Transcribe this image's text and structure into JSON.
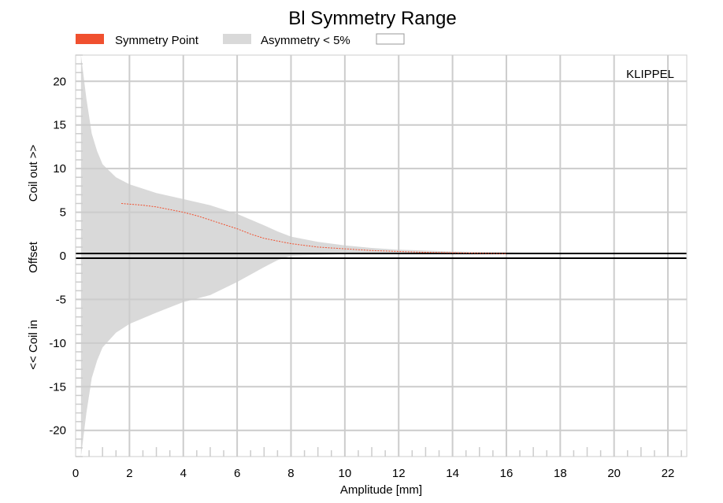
{
  "chart_data": {
    "type": "area",
    "title": "Bl Symmetry Range",
    "xlabel": "Amplitude [mm]",
    "ylabel_parts": [
      "<< Coil in",
      "Offset",
      "Coil out >>"
    ],
    "xlim": [
      0,
      22.7
    ],
    "ylim": [
      -23,
      23
    ],
    "x_ticks": [
      0,
      2,
      4,
      6,
      8,
      10,
      12,
      14,
      16,
      18,
      20,
      22
    ],
    "y_ticks": [
      -20,
      -15,
      -10,
      -5,
      0,
      5,
      10,
      15,
      20
    ],
    "grid": true,
    "legend_position": "top",
    "brand": "KLIPPEL",
    "series": [
      {
        "name": "Symmetry Point",
        "color": "#f0502f",
        "x": [
          1.7,
          2.5,
          3.0,
          3.5,
          4.0,
          4.5,
          5.0,
          5.5,
          6.0,
          6.5,
          7.0,
          7.5,
          8.0,
          8.5,
          9.0,
          10.0,
          11.0,
          12.0,
          13.0,
          14.0,
          15.0,
          16.0
        ],
        "y": [
          6.0,
          5.8,
          5.6,
          5.3,
          5.0,
          4.6,
          4.1,
          3.6,
          3.1,
          2.5,
          2.0,
          1.7,
          1.4,
          1.2,
          1.0,
          0.8,
          0.6,
          0.5,
          0.4,
          0.35,
          0.3,
          0.25
        ]
      },
      {
        "name": "Asymmetry < 5%",
        "color": "#d9d9d9",
        "x": [
          0.2,
          0.4,
          0.6,
          0.8,
          1.0,
          1.5,
          2.0,
          3.0,
          4.0,
          5.0,
          6.0,
          7.0,
          7.5,
          8.0,
          9.0,
          10.0,
          11.0,
          12.0,
          14.0,
          16.0,
          18.0,
          20.0,
          22.0,
          22.7
        ],
        "upper": [
          23,
          18.0,
          14.0,
          12.0,
          10.5,
          9.0,
          8.2,
          7.2,
          6.5,
          5.8,
          4.8,
          3.5,
          2.8,
          2.2,
          1.6,
          1.2,
          0.9,
          0.7,
          0.5,
          0.4,
          0.3,
          0.3,
          0.3,
          0.3
        ],
        "lower": [
          -23,
          -18.0,
          -14.0,
          -12.0,
          -10.5,
          -8.8,
          -7.8,
          -6.5,
          -5.3,
          -4.5,
          -3.0,
          -1.3,
          -0.5,
          0.0,
          0.1,
          0.2,
          0.2,
          0.2,
          0.2,
          0.2,
          0.2,
          0.2,
          0.2,
          0.2
        ]
      },
      {
        "name": "",
        "color": "#ffffff",
        "values": []
      }
    ]
  }
}
